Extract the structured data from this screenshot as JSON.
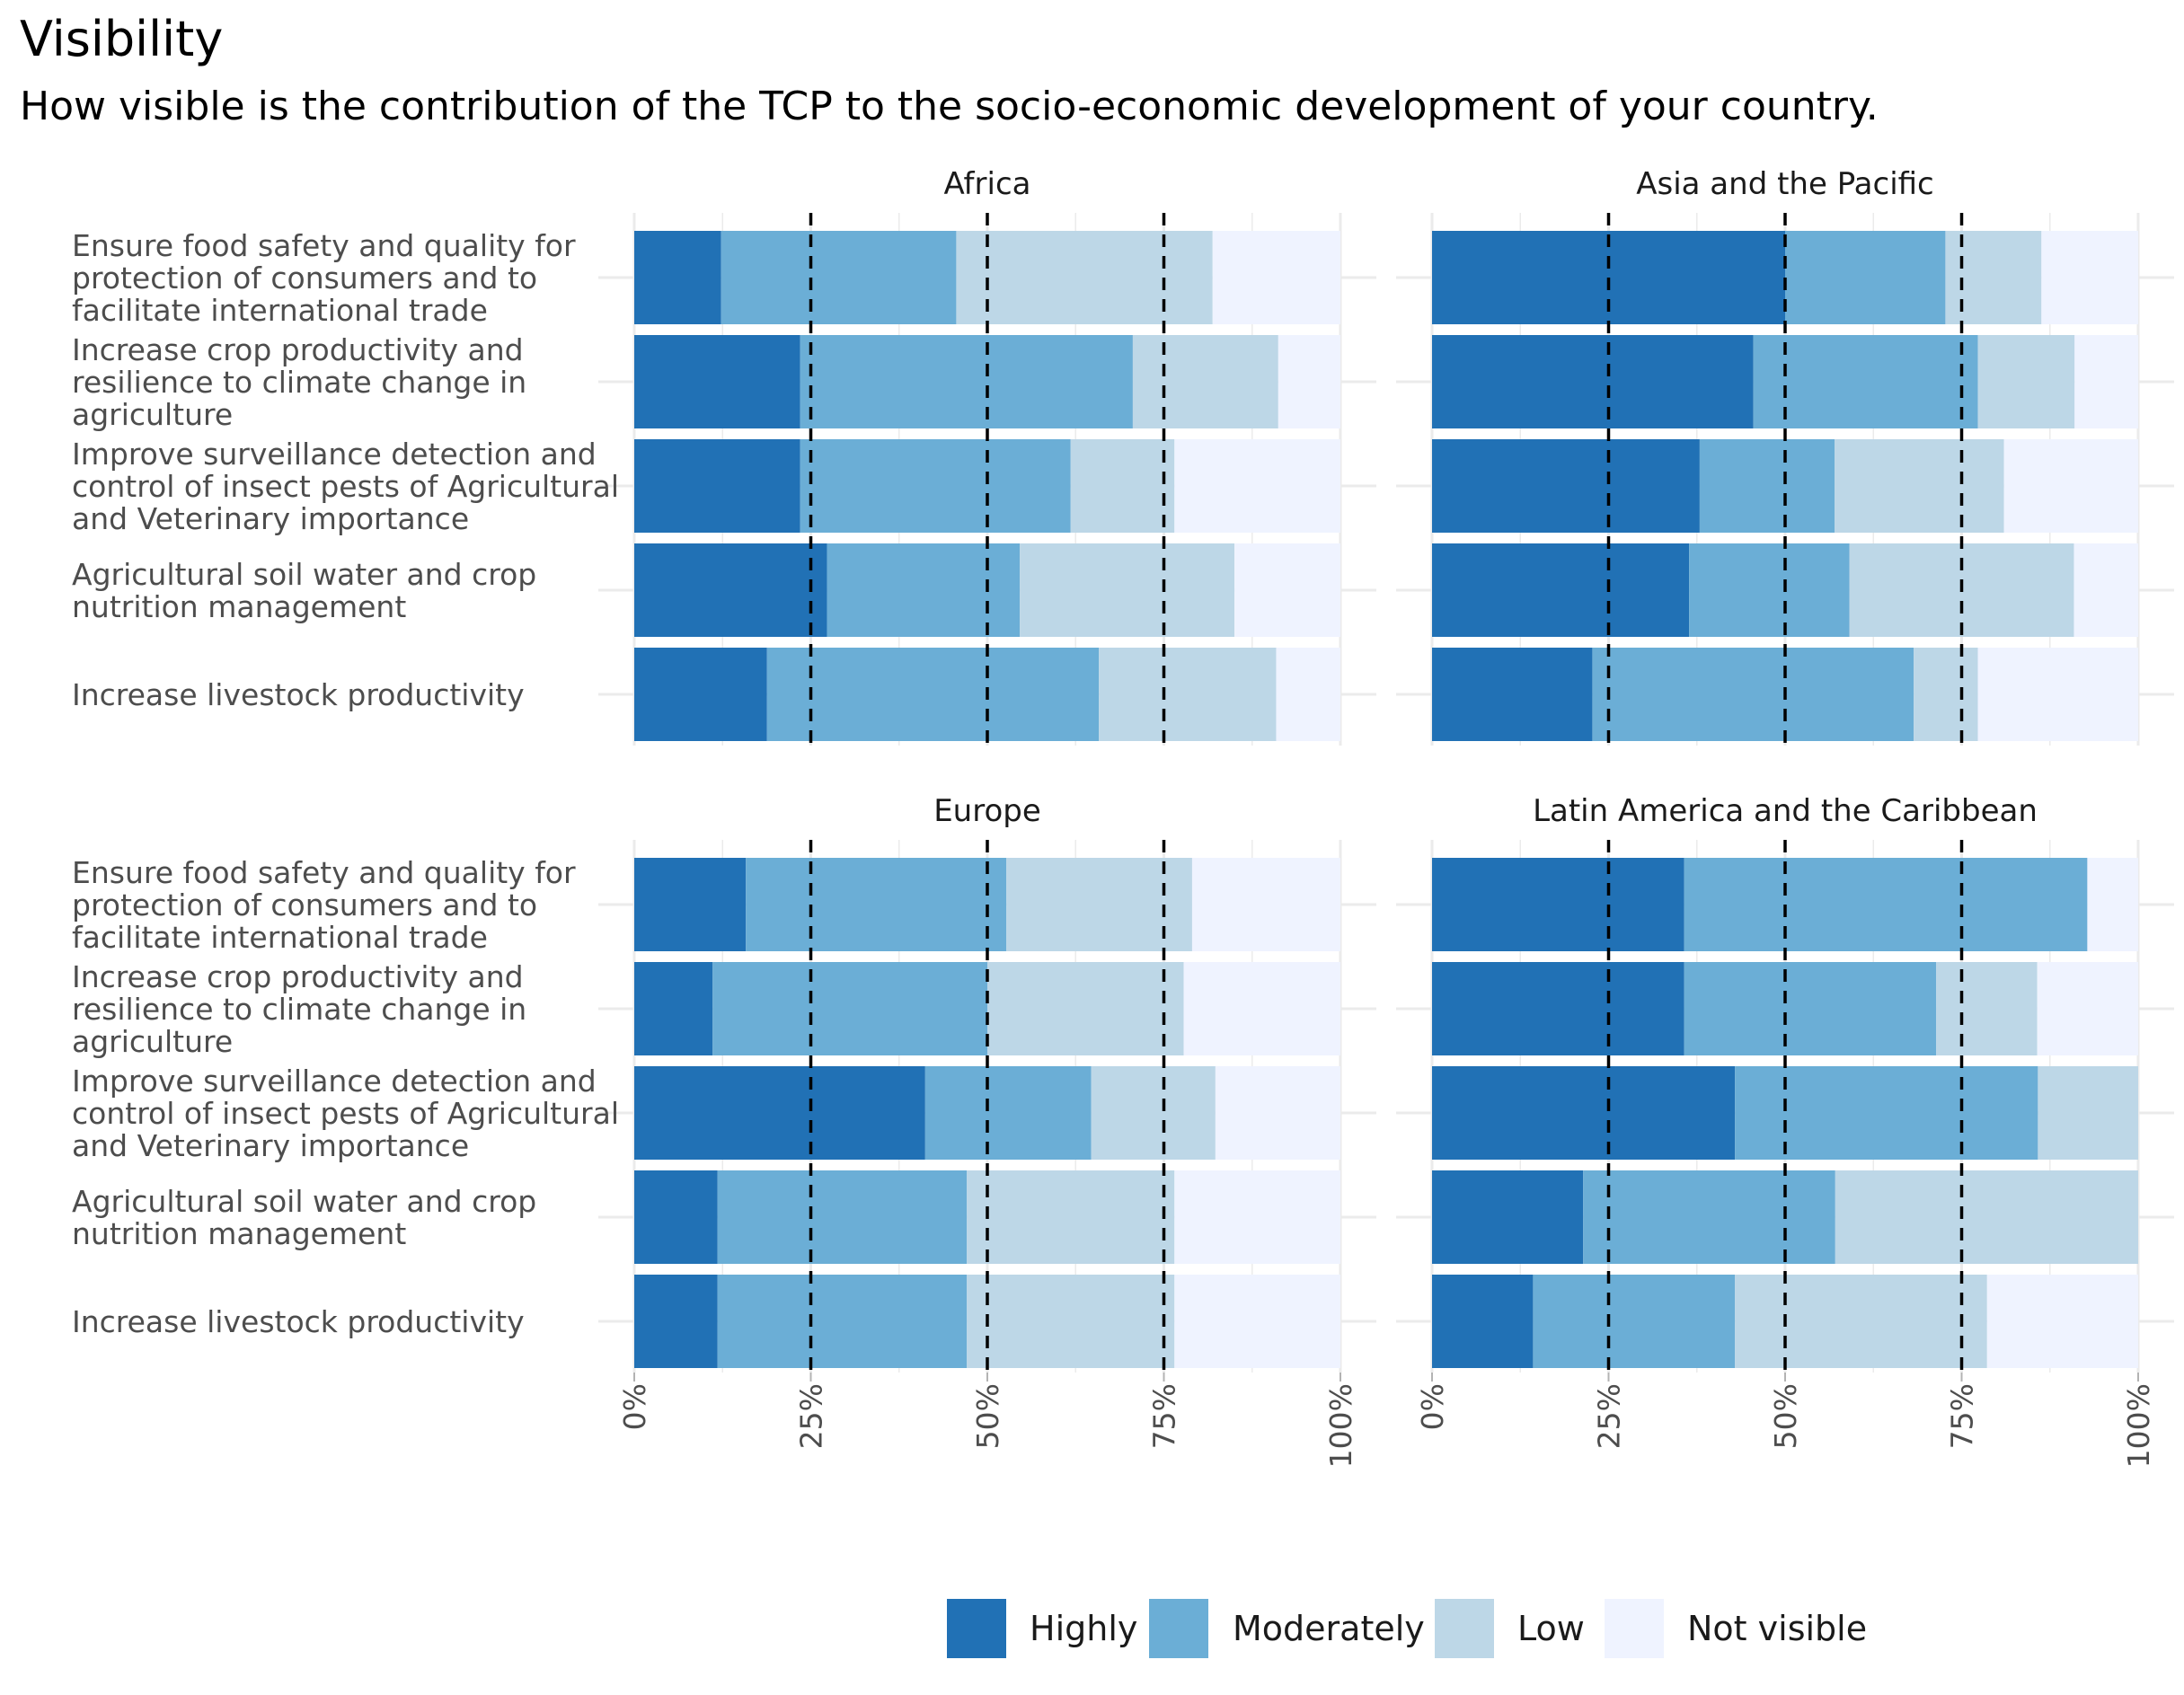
{
  "title": "Visibility",
  "subtitle": "How visible is the contribution of the TCP to the socio-economic development of your country.",
  "colors": {
    "Highly": "#2171b5",
    "Moderately": "#6baed6",
    "Low": "#bdd7e7",
    "Not visible": "#eff3ff"
  },
  "chart_data": {
    "type": "bar",
    "orientation": "horizontal",
    "stacked": "percent",
    "xlim": [
      0,
      100
    ],
    "x_ticks": [
      "0%",
      "25%",
      "50%",
      "75%",
      "100%"
    ],
    "reference_lines": [
      25,
      50,
      75
    ],
    "legend": {
      "position": "bottom",
      "entries": [
        "Highly",
        "Moderately",
        "Low",
        "Not visible"
      ]
    },
    "categories": [
      [
        "Ensure food safety and quality for",
        "protection of consumers and to",
        "facilitate international trade"
      ],
      [
        "Increase crop productivity and",
        "resilience to climate change in",
        "agriculture"
      ],
      [
        "Improve surveillance detection and",
        "control of insect pests of Agricultural",
        "and Veterinary importance"
      ],
      [
        "Agricultural soil water and crop",
        "nutrition management"
      ],
      [
        "Increase livestock productivity"
      ]
    ],
    "panels": [
      {
        "name": "Africa",
        "values": [
          [
            12.3,
            33.3,
            36.3,
            18.1
          ],
          [
            23.5,
            47.1,
            20.6,
            8.8
          ],
          [
            23.5,
            38.3,
            14.7,
            23.5
          ],
          [
            27.3,
            27.3,
            30.4,
            15.0
          ],
          [
            18.8,
            47.0,
            25.1,
            9.1
          ]
        ]
      },
      {
        "name": "Asia and the Pacific",
        "values": [
          [
            50.0,
            22.7,
            13.6,
            13.7
          ],
          [
            45.5,
            31.8,
            13.7,
            9.0
          ],
          [
            37.9,
            19.1,
            24.0,
            19.0
          ],
          [
            36.4,
            22.7,
            31.8,
            9.1
          ],
          [
            22.7,
            45.5,
            9.1,
            22.7
          ]
        ]
      },
      {
        "name": "Europe",
        "values": [
          [
            15.8,
            36.9,
            26.3,
            21.0
          ],
          [
            11.1,
            38.9,
            27.8,
            22.2
          ],
          [
            41.2,
            23.5,
            17.6,
            17.7
          ],
          [
            11.8,
            35.3,
            29.4,
            23.5
          ],
          [
            11.8,
            35.3,
            29.4,
            23.5
          ]
        ]
      },
      {
        "name": "Latin America and the Caribbean",
        "values": [
          [
            35.7,
            57.1,
            0,
            7.2
          ],
          [
            35.7,
            35.7,
            14.3,
            14.3
          ],
          [
            42.9,
            42.9,
            14.2,
            0
          ],
          [
            21.4,
            35.7,
            42.9,
            0
          ],
          [
            14.3,
            28.6,
            35.7,
            21.4
          ]
        ]
      }
    ]
  }
}
